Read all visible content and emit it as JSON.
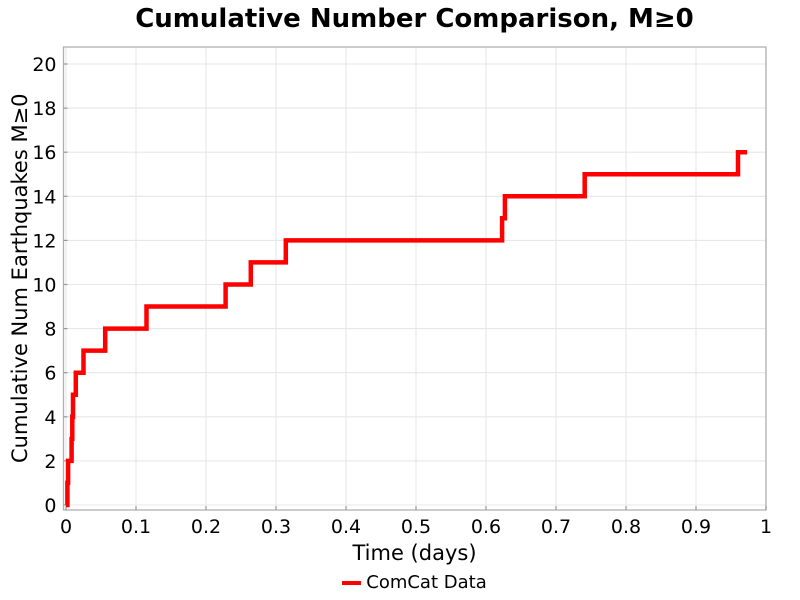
{
  "chart_data": {
    "type": "line",
    "step": "post",
    "title": "Cumulative Number Comparison, M≥0",
    "xlabel": "Time (days)",
    "ylabel": "Cumulative Num Earthquakes M≥0",
    "xlim": [
      0,
      1
    ],
    "ylim": [
      0,
      20
    ],
    "grid": true,
    "legend_position": "bottom-center",
    "xticks": {
      "values": [
        0,
        0.1,
        0.2,
        0.3,
        0.4,
        0.5,
        0.6,
        0.7,
        0.8,
        0.9,
        1
      ],
      "labels": [
        "0",
        "0.1",
        "0.2",
        "0.3",
        "0.4",
        "0.5",
        "0.6",
        "0.7",
        "0.8",
        "0.9",
        "1"
      ]
    },
    "yticks": {
      "values": [
        0,
        2,
        4,
        6,
        8,
        10,
        12,
        14,
        16,
        18,
        20
      ],
      "labels": [
        "0",
        "2",
        "4",
        "6",
        "8",
        "10",
        "12",
        "14",
        "16",
        "18",
        "20"
      ]
    },
    "legend": {
      "entries": [
        {
          "label": "ComCat Data",
          "color": "#ff0000"
        }
      ]
    },
    "series": [
      {
        "name": "ComCat Data",
        "color": "#ff0000",
        "line_width": 4.5,
        "start": [
          0,
          0
        ],
        "events": [
          [
            0.002,
            1
          ],
          [
            0.003,
            2
          ],
          [
            0.008,
            3
          ],
          [
            0.009,
            4
          ],
          [
            0.01,
            5
          ],
          [
            0.014,
            6
          ],
          [
            0.025,
            7
          ],
          [
            0.056,
            8
          ],
          [
            0.115,
            9
          ],
          [
            0.228,
            10
          ],
          [
            0.264,
            11
          ],
          [
            0.314,
            12
          ],
          [
            0.623,
            13
          ],
          [
            0.627,
            14
          ],
          [
            0.741,
            15
          ],
          [
            0.96,
            16
          ]
        ],
        "end_time": 0.973
      }
    ],
    "colors": {
      "spine": "#b0b0b0",
      "grid": "#e7e7e7",
      "tick": "#999999",
      "text": "#000000",
      "background": "#ffffff"
    }
  }
}
